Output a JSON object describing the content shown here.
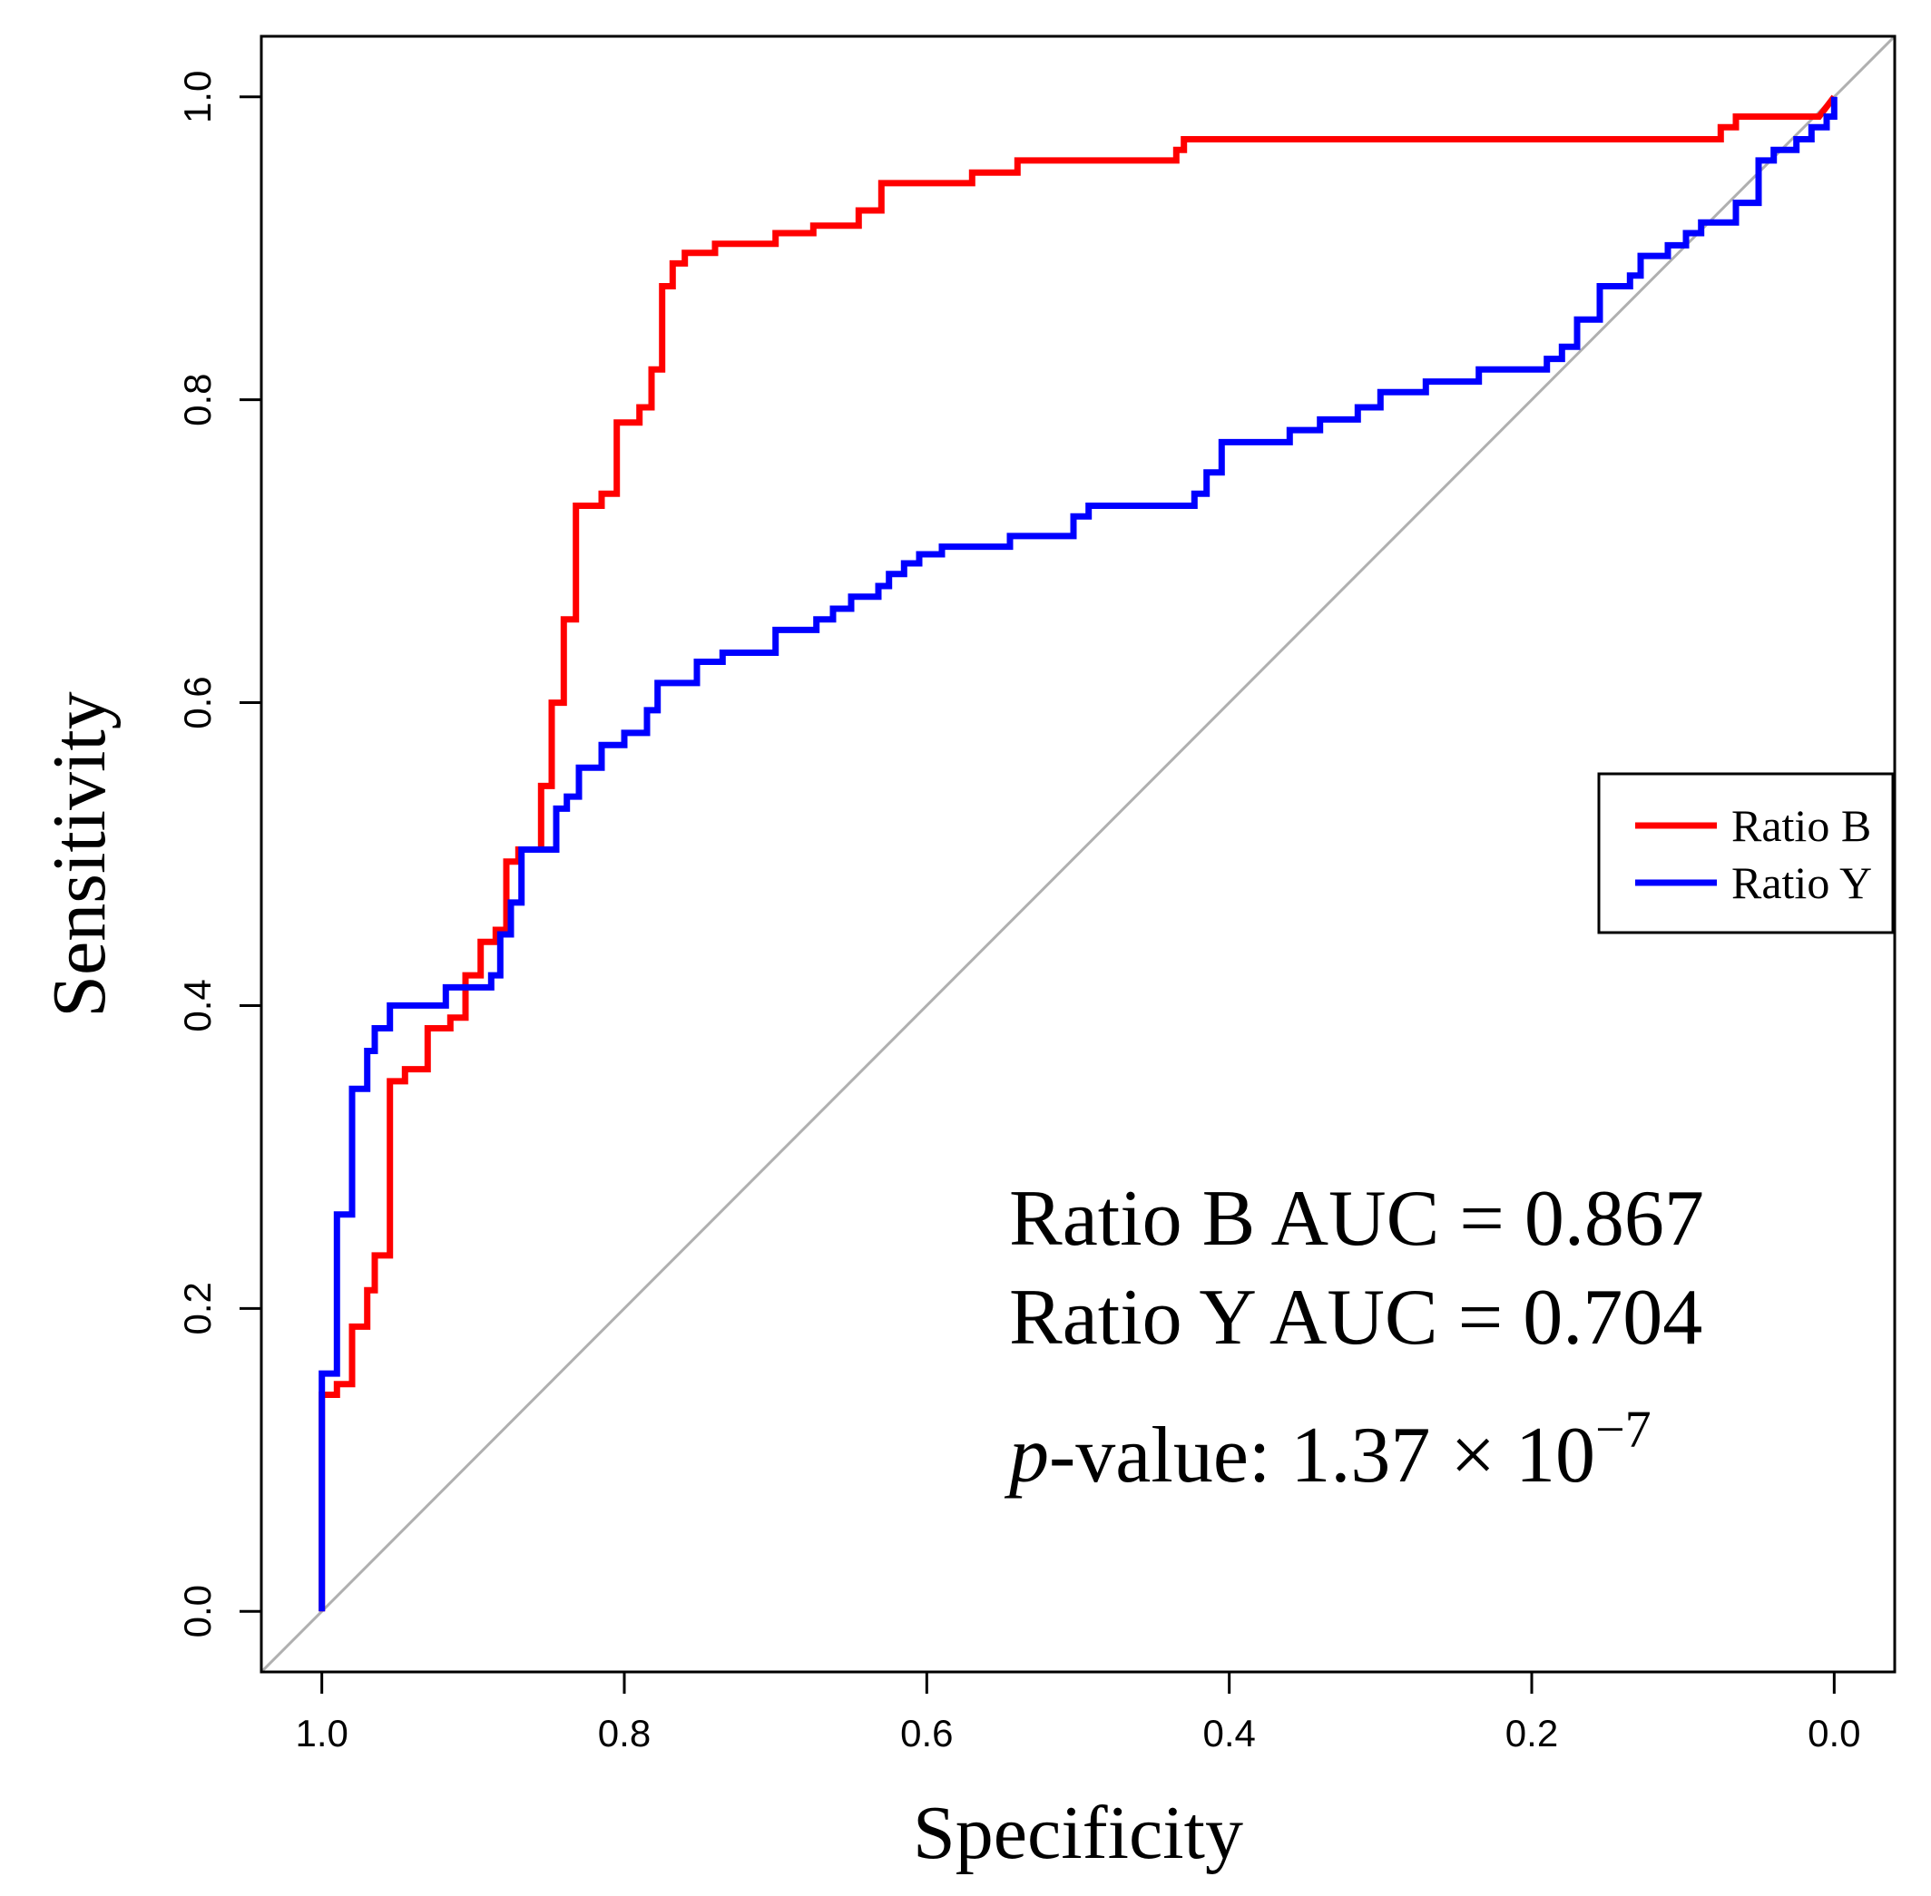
{
  "chart_data": {
    "type": "line",
    "xlabel": "Specificity",
    "ylabel": "Sensitivity",
    "xlim": [
      1.04,
      -0.04
    ],
    "ylim": [
      -0.04,
      1.04
    ],
    "x_ticks": [
      "1.0",
      "0.8",
      "0.6",
      "0.4",
      "0.2",
      "0.0"
    ],
    "y_ticks": [
      "0.0",
      "0.2",
      "0.4",
      "0.6",
      "0.8",
      "1.0"
    ],
    "grid": false,
    "reference_line": {
      "x": [
        1.0,
        0.0
      ],
      "y": [
        0.0,
        1.0
      ],
      "color": "#b0b0b0"
    },
    "legend": {
      "position": "right",
      "entries": [
        {
          "label": "Ratio B",
          "color": "#ff0000"
        },
        {
          "label": "Ratio Y",
          "color": "#0000ff"
        }
      ]
    },
    "series": [
      {
        "name": "Ratio B",
        "color": "#ff0000",
        "points": [
          [
            1.0,
            0.0
          ],
          [
            1.0,
            0.143
          ],
          [
            0.99,
            0.143
          ],
          [
            0.99,
            0.15
          ],
          [
            0.98,
            0.15
          ],
          [
            0.98,
            0.188
          ],
          [
            0.97,
            0.188
          ],
          [
            0.97,
            0.212
          ],
          [
            0.965,
            0.212
          ],
          [
            0.965,
            0.235
          ],
          [
            0.955,
            0.235
          ],
          [
            0.955,
            0.35
          ],
          [
            0.945,
            0.35
          ],
          [
            0.945,
            0.358
          ],
          [
            0.93,
            0.358
          ],
          [
            0.93,
            0.385
          ],
          [
            0.915,
            0.385
          ],
          [
            0.915,
            0.392
          ],
          [
            0.905,
            0.392
          ],
          [
            0.905,
            0.42
          ],
          [
            0.895,
            0.42
          ],
          [
            0.895,
            0.442
          ],
          [
            0.885,
            0.442
          ],
          [
            0.885,
            0.45
          ],
          [
            0.878,
            0.45
          ],
          [
            0.878,
            0.495
          ],
          [
            0.87,
            0.495
          ],
          [
            0.87,
            0.503
          ],
          [
            0.855,
            0.503
          ],
          [
            0.855,
            0.545
          ],
          [
            0.848,
            0.545
          ],
          [
            0.848,
            0.6
          ],
          [
            0.84,
            0.6
          ],
          [
            0.84,
            0.655
          ],
          [
            0.832,
            0.655
          ],
          [
            0.832,
            0.73
          ],
          [
            0.815,
            0.73
          ],
          [
            0.815,
            0.738
          ],
          [
            0.805,
            0.738
          ],
          [
            0.805,
            0.785
          ],
          [
            0.79,
            0.785
          ],
          [
            0.79,
            0.795
          ],
          [
            0.782,
            0.795
          ],
          [
            0.782,
            0.82
          ],
          [
            0.775,
            0.82
          ],
          [
            0.775,
            0.875
          ],
          [
            0.768,
            0.875
          ],
          [
            0.768,
            0.89
          ],
          [
            0.76,
            0.89
          ],
          [
            0.76,
            0.897
          ],
          [
            0.74,
            0.897
          ],
          [
            0.74,
            0.903
          ],
          [
            0.7,
            0.903
          ],
          [
            0.7,
            0.91
          ],
          [
            0.675,
            0.91
          ],
          [
            0.675,
            0.915
          ],
          [
            0.645,
            0.915
          ],
          [
            0.645,
            0.925
          ],
          [
            0.63,
            0.925
          ],
          [
            0.63,
            0.943
          ],
          [
            0.57,
            0.943
          ],
          [
            0.57,
            0.95
          ],
          [
            0.54,
            0.95
          ],
          [
            0.54,
            0.958
          ],
          [
            0.435,
            0.958
          ],
          [
            0.435,
            0.965
          ],
          [
            0.43,
            0.965
          ],
          [
            0.43,
            0.972
          ],
          [
            0.075,
            0.972
          ],
          [
            0.075,
            0.98
          ],
          [
            0.065,
            0.98
          ],
          [
            0.065,
            0.987
          ],
          [
            0.01,
            0.987
          ],
          [
            0.0,
            1.0
          ]
        ]
      },
      {
        "name": "Ratio Y",
        "color": "#0000ff",
        "points": [
          [
            1.0,
            0.0
          ],
          [
            1.0,
            0.157
          ],
          [
            0.99,
            0.157
          ],
          [
            0.99,
            0.262
          ],
          [
            0.98,
            0.262
          ],
          [
            0.98,
            0.345
          ],
          [
            0.97,
            0.345
          ],
          [
            0.97,
            0.37
          ],
          [
            0.965,
            0.37
          ],
          [
            0.965,
            0.385
          ],
          [
            0.955,
            0.385
          ],
          [
            0.955,
            0.4
          ],
          [
            0.918,
            0.4
          ],
          [
            0.918,
            0.412
          ],
          [
            0.888,
            0.412
          ],
          [
            0.888,
            0.42
          ],
          [
            0.882,
            0.42
          ],
          [
            0.882,
            0.447
          ],
          [
            0.875,
            0.447
          ],
          [
            0.875,
            0.468
          ],
          [
            0.868,
            0.468
          ],
          [
            0.868,
            0.503
          ],
          [
            0.845,
            0.503
          ],
          [
            0.845,
            0.53
          ],
          [
            0.838,
            0.53
          ],
          [
            0.838,
            0.538
          ],
          [
            0.83,
            0.538
          ],
          [
            0.83,
            0.557
          ],
          [
            0.815,
            0.557
          ],
          [
            0.815,
            0.572
          ],
          [
            0.8,
            0.572
          ],
          [
            0.8,
            0.58
          ],
          [
            0.785,
            0.58
          ],
          [
            0.785,
            0.595
          ],
          [
            0.778,
            0.595
          ],
          [
            0.778,
            0.613
          ],
          [
            0.752,
            0.613
          ],
          [
            0.752,
            0.627
          ],
          [
            0.735,
            0.627
          ],
          [
            0.735,
            0.633
          ],
          [
            0.7,
            0.633
          ],
          [
            0.7,
            0.648
          ],
          [
            0.673,
            0.648
          ],
          [
            0.673,
            0.655
          ],
          [
            0.662,
            0.655
          ],
          [
            0.662,
            0.662
          ],
          [
            0.65,
            0.662
          ],
          [
            0.65,
            0.67
          ],
          [
            0.632,
            0.67
          ],
          [
            0.632,
            0.677
          ],
          [
            0.625,
            0.677
          ],
          [
            0.625,
            0.685
          ],
          [
            0.615,
            0.685
          ],
          [
            0.615,
            0.692
          ],
          [
            0.605,
            0.692
          ],
          [
            0.605,
            0.698
          ],
          [
            0.59,
            0.698
          ],
          [
            0.59,
            0.703
          ],
          [
            0.545,
            0.703
          ],
          [
            0.545,
            0.71
          ],
          [
            0.503,
            0.71
          ],
          [
            0.503,
            0.723
          ],
          [
            0.493,
            0.723
          ],
          [
            0.493,
            0.73
          ],
          [
            0.423,
            0.73
          ],
          [
            0.423,
            0.738
          ],
          [
            0.415,
            0.738
          ],
          [
            0.415,
            0.752
          ],
          [
            0.405,
            0.752
          ],
          [
            0.405,
            0.772
          ],
          [
            0.36,
            0.772
          ],
          [
            0.36,
            0.78
          ],
          [
            0.34,
            0.78
          ],
          [
            0.34,
            0.787
          ],
          [
            0.315,
            0.787
          ],
          [
            0.315,
            0.795
          ],
          [
            0.3,
            0.795
          ],
          [
            0.3,
            0.805
          ],
          [
            0.27,
            0.805
          ],
          [
            0.27,
            0.812
          ],
          [
            0.235,
            0.812
          ],
          [
            0.235,
            0.82
          ],
          [
            0.19,
            0.82
          ],
          [
            0.19,
            0.827
          ],
          [
            0.18,
            0.827
          ],
          [
            0.18,
            0.835
          ],
          [
            0.17,
            0.835
          ],
          [
            0.17,
            0.853
          ],
          [
            0.155,
            0.853
          ],
          [
            0.155,
            0.875
          ],
          [
            0.135,
            0.875
          ],
          [
            0.135,
            0.882
          ],
          [
            0.128,
            0.882
          ],
          [
            0.128,
            0.895
          ],
          [
            0.11,
            0.895
          ],
          [
            0.11,
            0.902
          ],
          [
            0.098,
            0.902
          ],
          [
            0.098,
            0.91
          ],
          [
            0.088,
            0.91
          ],
          [
            0.088,
            0.917
          ],
          [
            0.065,
            0.917
          ],
          [
            0.065,
            0.93
          ],
          [
            0.05,
            0.93
          ],
          [
            0.05,
            0.958
          ],
          [
            0.04,
            0.958
          ],
          [
            0.04,
            0.965
          ],
          [
            0.025,
            0.965
          ],
          [
            0.025,
            0.972
          ],
          [
            0.015,
            0.972
          ],
          [
            0.015,
            0.98
          ],
          [
            0.005,
            0.98
          ],
          [
            0.005,
            0.987
          ],
          [
            0.0,
            0.987
          ],
          [
            0.0,
            1.0
          ]
        ]
      }
    ],
    "annotations": {
      "ratio_b_auc": "Ratio B AUC = 0.867",
      "ratio_y_auc": "Ratio Y AUC = 0.704",
      "p_value_prefix": "p",
      "p_value_middle": "-value: 1.37 × 10",
      "p_value_exponent": "−7"
    }
  }
}
